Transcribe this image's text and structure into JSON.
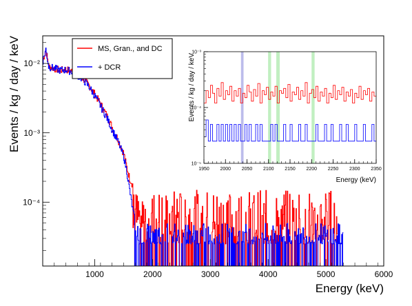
{
  "chart_data": [
    {
      "type": "line",
      "xlabel": "Energy (keV)",
      "ylabel": "Events / kg / day / keV",
      "xlim": [
        100,
        6000
      ],
      "ylim": [
        1.2e-05,
        0.025
      ],
      "yscale": "log",
      "x_ticks": [
        1000,
        2000,
        3000,
        4000,
        5000,
        6000
      ],
      "x_tick_labels": [
        "1000",
        "2000",
        "3000",
        "4000",
        "5000",
        "6000"
      ],
      "y_ticks": [
        0.0001,
        0.001,
        0.01
      ],
      "y_tick_labels": [
        "10⁻⁴",
        "10⁻³",
        "10⁻²"
      ],
      "grid": false,
      "legend_position": "top",
      "series": [
        {
          "name": "MS, Gran., and DC",
          "color": "#ff0000",
          "x": [
            100,
            150,
            200,
            300,
            400,
            500,
            600,
            700,
            800,
            900,
            1000,
            1100,
            1200,
            1300,
            1400,
            1500,
            1550,
            1600,
            1650,
            1700,
            1750,
            1800,
            1900,
            2000,
            2100,
            2200,
            2300,
            2400,
            2500,
            2600,
            2650,
            2700,
            2800,
            3000,
            3200,
            3500,
            4000,
            4500,
            5000,
            5200
          ],
          "values": [
            0.011,
            0.016,
            0.009,
            0.0085,
            0.008,
            0.0082,
            0.0078,
            0.007,
            0.006,
            0.0048,
            0.0036,
            0.0026,
            0.0018,
            0.0012,
            0.0008,
            0.0005,
            0.00032,
            0.00022,
            0.00018,
            0.00017,
            0.00015,
            0.00013,
            0.00012,
            0.00011,
            0.00012,
            0.00011,
            0.0001,
            0.00012,
            0.00011,
            0.0001,
            8e-05,
            5e-05,
            4.5e-05,
            4e-05,
            3.5e-05,
            3.2e-05,
            3e-05,
            2.8e-05,
            2.8e-05,
            2.5e-05
          ],
          "noise_min": 2.5e-05,
          "noise_max": 0.00015
        },
        {
          "name": "+ DCR",
          "color": "#0000ff",
          "x": [
            100,
            150,
            200,
            300,
            400,
            500,
            600,
            700,
            800,
            900,
            1000,
            1100,
            1200,
            1300,
            1400,
            1500,
            1550,
            1600,
            1650,
            1700,
            1750,
            1800,
            2000,
            2500,
            3000,
            4000,
            5000,
            5300
          ],
          "values": [
            0.011,
            0.016,
            0.009,
            0.0085,
            0.008,
            0.0081,
            0.0077,
            0.0068,
            0.0058,
            0.0046,
            0.0034,
            0.0024,
            0.0017,
            0.0011,
            0.00075,
            0.00045,
            0.00028,
            0.00015,
            8e-05,
            5e-05,
            4e-05,
            3.5e-05,
            3e-05,
            2.8e-05,
            2.6e-05,
            2.5e-05,
            2.5e-05,
            2.5e-05
          ],
          "noise_min": 2.5e-05,
          "noise_max": 5e-05
        }
      ]
    },
    {
      "type": "line",
      "xlabel": "Energy (keV)",
      "ylabel": "Events / kg / day / keV",
      "xlim": [
        1950,
        2350
      ],
      "ylim": [
        1e-05,
        0.001
      ],
      "yscale": "log",
      "x_ticks": [
        1950,
        2000,
        2050,
        2100,
        2150,
        2200,
        2250,
        2300,
        2350
      ],
      "x_tick_labels": [
        "1950",
        "2000",
        "2050",
        "2100",
        "2150",
        "2200",
        "2250",
        "2300",
        "2350"
      ],
      "y_ticks": [
        1e-05,
        0.0001,
        0.001
      ],
      "y_tick_labels": [
        "10⁻⁵",
        "10⁻⁴",
        "10⁻³"
      ],
      "bands": [
        {
          "from": 2036,
          "to": 2042,
          "color": "#b0b0e8"
        },
        {
          "from": 2099,
          "to": 2106,
          "color": "#b6ecb6"
        },
        {
          "from": 2118,
          "to": 2126,
          "color": "#b6ecb6"
        },
        {
          "from": 2200,
          "to": 2207,
          "color": "#b6ecb6"
        }
      ],
      "series": [
        {
          "name": "MS, Gran., and DC",
          "color": "#ff0000",
          "x": [
            1950,
            1955,
            1960,
            1965,
            1970,
            1975,
            1980,
            1985,
            1990,
            1995,
            2000,
            2005,
            2010,
            2015,
            2020,
            2025,
            2030,
            2035,
            2040,
            2045,
            2050,
            2055,
            2060,
            2065,
            2070,
            2075,
            2080,
            2085,
            2090,
            2095,
            2100,
            2105,
            2110,
            2115,
            2120,
            2125,
            2130,
            2135,
            2140,
            2145,
            2150,
            2155,
            2160,
            2165,
            2170,
            2175,
            2180,
            2185,
            2190,
            2195,
            2200,
            2205,
            2210,
            2215,
            2220,
            2225,
            2230,
            2235,
            2240,
            2245,
            2250,
            2255,
            2260,
            2265,
            2270,
            2275,
            2280,
            2285,
            2290,
            2295,
            2300,
            2305,
            2310,
            2315,
            2320,
            2325,
            2330,
            2335,
            2340,
            2345
          ],
          "values": [
            0.00012,
            0.0002,
            0.00015,
            0.00025,
            0.00018,
            0.00012,
            0.00022,
            0.00016,
            0.00028,
            0.00014,
            0.0002,
            0.00017,
            0.00024,
            0.00013,
            0.0002,
            0.00016,
            0.00022,
            0.00012,
            0.00018,
            0.00015,
            0.00025,
            0.00019,
            0.00013,
            0.00021,
            0.00016,
            0.00027,
            0.00012,
            0.0002,
            0.00017,
            0.00023,
            0.00014,
            0.00019,
            0.00016,
            0.00024,
            0.00012,
            0.0002,
            0.00018,
            0.00022,
            0.00015,
            0.00026,
            0.00013,
            0.00019,
            0.00017,
            0.00023,
            0.00014,
            0.0002,
            0.00016,
            0.00028,
            0.00012,
            0.00018,
            0.00021,
            0.00015,
            0.00024,
            0.00013,
            0.00019,
            0.00016,
            0.00022,
            0.00012,
            0.00018,
            0.00015,
            0.00025,
            0.00014,
            0.0002,
            0.00017,
            0.00023,
            0.00013,
            0.00019,
            0.00016,
            0.00021,
            0.00012,
            0.00018,
            0.00015,
            0.00024,
            0.00014,
            0.0002,
            0.00017,
            0.00022,
            0.00013,
            0.00019,
            0.00016
          ]
        },
        {
          "name": "+ DCR",
          "color": "#0000ff",
          "x": [
            1950,
            1955,
            1960,
            1965,
            1970,
            1975,
            1980,
            1985,
            1990,
            1995,
            2000,
            2005,
            2010,
            2015,
            2020,
            2025,
            2030,
            2035,
            2040,
            2045,
            2050,
            2055,
            2060,
            2065,
            2070,
            2075,
            2080,
            2085,
            2090,
            2095,
            2100,
            2105,
            2110,
            2115,
            2120,
            2125,
            2130,
            2135,
            2140,
            2145,
            2150,
            2155,
            2160,
            2165,
            2170,
            2175,
            2180,
            2185,
            2190,
            2195,
            2200,
            2205,
            2210,
            2215,
            2220,
            2225,
            2230,
            2235,
            2240,
            2245,
            2250,
            2255,
            2260,
            2265,
            2270,
            2275,
            2280,
            2285,
            2290,
            2295,
            2300,
            2305,
            2310,
            2315,
            2320,
            2325,
            2330,
            2335,
            2340,
            2345
          ],
          "values": [
            3e-05,
            6e-05,
            2.5e-05,
            5e-05,
            2.5e-05,
            2.5e-05,
            5e-05,
            2.5e-05,
            5e-05,
            2.5e-05,
            5e-05,
            2.5e-05,
            5e-05,
            2.5e-05,
            5e-05,
            2.5e-05,
            5e-05,
            2.5e-05,
            2.5e-05,
            5e-05,
            2.5e-05,
            5e-05,
            2.5e-05,
            2.5e-05,
            5e-05,
            2.5e-05,
            5e-05,
            2.5e-05,
            2.5e-05,
            2.5e-05,
            2.5e-05,
            5e-05,
            2.5e-05,
            5e-05,
            2.5e-05,
            2.5e-05,
            2.5e-05,
            5e-05,
            2.5e-05,
            2.5e-05,
            5e-05,
            2.5e-05,
            2.5e-05,
            2.5e-05,
            5e-05,
            2.5e-05,
            2.5e-05,
            5e-05,
            2.5e-05,
            2.5e-05,
            2.5e-05,
            2.5e-05,
            5e-05,
            2.5e-05,
            2.5e-05,
            2.5e-05,
            5e-05,
            2.5e-05,
            2.5e-05,
            5e-05,
            2.5e-05,
            2.5e-05,
            2.5e-05,
            5e-05,
            2.5e-05,
            2.5e-05,
            5e-05,
            2.5e-05,
            2.5e-05,
            2.5e-05,
            5e-05,
            2.5e-05,
            2.5e-05,
            2.5e-05,
            5e-05,
            2.5e-05,
            2.5e-05,
            2.5e-05,
            5e-05,
            2.5e-05
          ]
        }
      ]
    }
  ]
}
